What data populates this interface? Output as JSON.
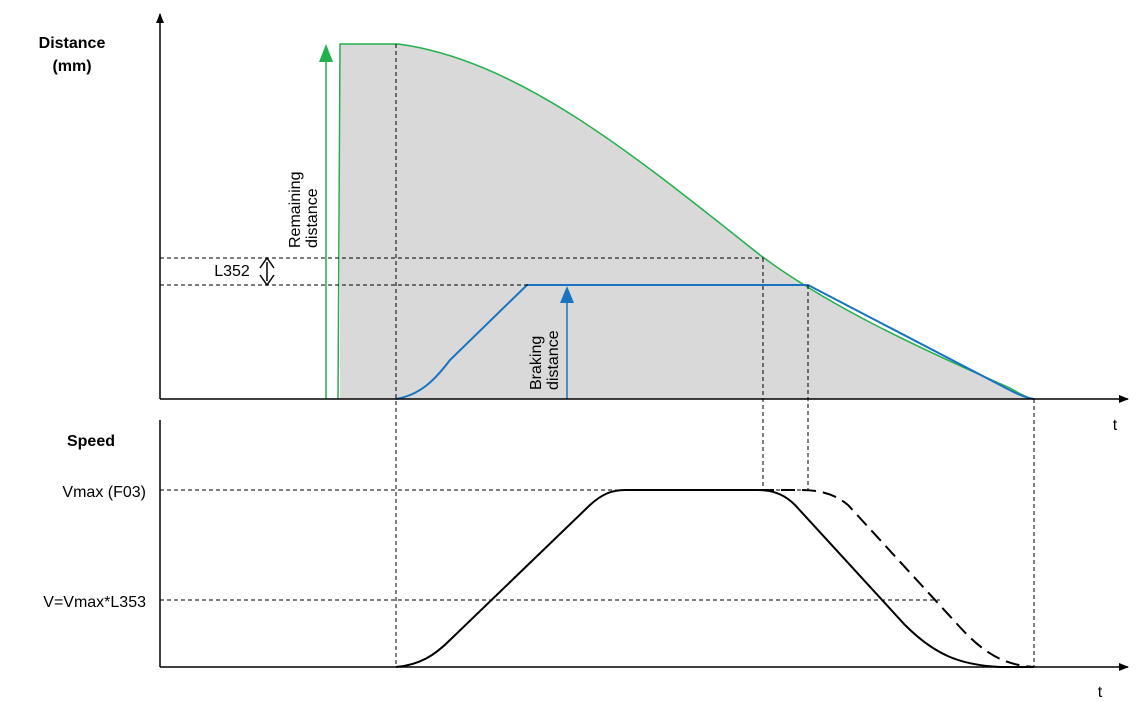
{
  "distance_panel": {
    "title_line1": "Distance",
    "title_line2": "(mm)",
    "l352_label": "L352",
    "remaining_line1": "Remaining",
    "remaining_line2": "distance",
    "braking_line1": "Braking",
    "braking_line2": "distance",
    "x_axis_label": "t"
  },
  "speed_panel": {
    "title": "Speed",
    "vmax_label": "Vmax (F03)",
    "v_reduced_label": "V=Vmax*L353",
    "x_axis_label": "t"
  },
  "colors": {
    "remaining_curve": "#22b14c",
    "braking_curve": "#1a73c0",
    "fill_area": "#d9d9d9",
    "speed_curve": "#000000"
  }
}
